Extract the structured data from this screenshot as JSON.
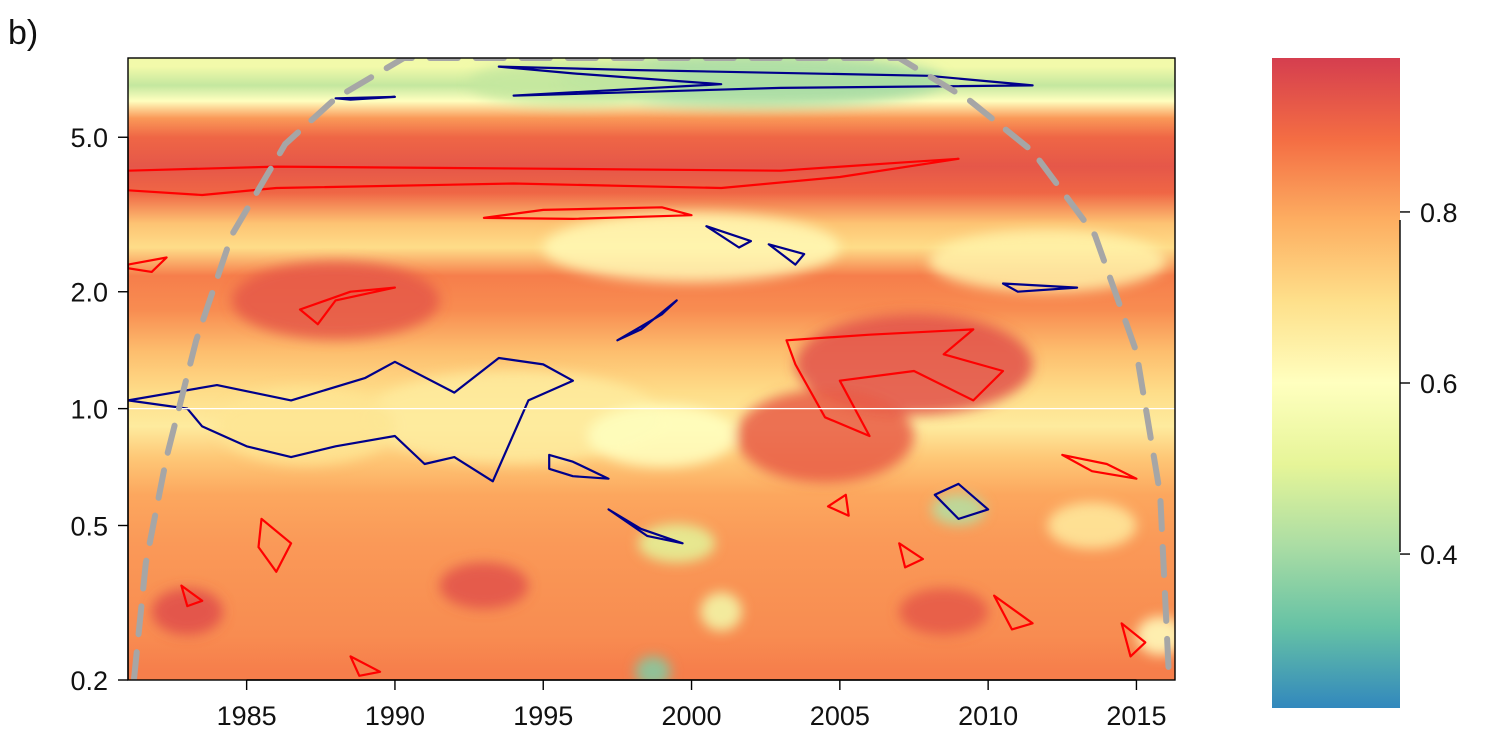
{
  "panel_label": "b)",
  "chart_data": {
    "type": "heatmap",
    "title": "",
    "xlabel": "",
    "ylabel": "",
    "panel_label": "b)",
    "x_range": [
      1981,
      2016.3
    ],
    "y_scale": "log",
    "y_range": [
      0.2,
      8.0
    ],
    "x_ticks": [
      1985,
      1990,
      1995,
      2000,
      2005,
      2010,
      2015
    ],
    "x_tick_labels": [
      "1985",
      "1990",
      "1995",
      "2000",
      "2005",
      "2010",
      "2015"
    ],
    "y_ticks": [
      0.2,
      0.5,
      1.0,
      2.0,
      5.0
    ],
    "y_tick_labels": [
      "0.2",
      "0.5",
      "1.0",
      "2.0",
      "5.0"
    ],
    "reference_line_y": 1.0,
    "colorbar": {
      "range": [
        0.22,
        0.98
      ],
      "ticks": [
        0.4,
        0.6,
        0.8
      ],
      "tick_labels": [
        "0.4",
        "0.6",
        "0.8"
      ],
      "palette": [
        "#3288bd",
        "#66c2a5",
        "#abdda4",
        "#e6f598",
        "#ffffbf",
        "#fee08b",
        "#fdae61",
        "#f46d43",
        "#d53e4f"
      ]
    },
    "bands": [
      {
        "y": 7.6,
        "value": 0.55
      },
      {
        "y": 6.8,
        "value": 0.45
      },
      {
        "y": 6.2,
        "value": 0.6
      },
      {
        "y": 5.6,
        "value": 0.82
      },
      {
        "y": 5.0,
        "value": 0.9
      },
      {
        "y": 4.2,
        "value": 0.93
      },
      {
        "y": 3.6,
        "value": 0.9
      },
      {
        "y": 3.0,
        "value": 0.75
      },
      {
        "y": 2.6,
        "value": 0.7
      },
      {
        "y": 2.2,
        "value": 0.86
      },
      {
        "y": 1.8,
        "value": 0.84
      },
      {
        "y": 1.4,
        "value": 0.76
      },
      {
        "y": 1.1,
        "value": 0.7
      },
      {
        "y": 0.9,
        "value": 0.66
      },
      {
        "y": 0.75,
        "value": 0.74
      },
      {
        "y": 0.6,
        "value": 0.8
      },
      {
        "y": 0.45,
        "value": 0.82
      },
      {
        "y": 0.35,
        "value": 0.83
      },
      {
        "y": 0.26,
        "value": 0.84
      },
      {
        "y": 0.21,
        "value": 0.86
      }
    ],
    "blobs": [
      {
        "x": 2002.0,
        "y": 7.0,
        "rx": 6.5,
        "ry": 0.07,
        "value": 0.4
      },
      {
        "x": 1996.0,
        "y": 6.9,
        "rx": 3.5,
        "ry": 0.06,
        "value": 0.45
      },
      {
        "x": 2000.0,
        "y": 2.6,
        "rx": 5.0,
        "ry": 0.09,
        "value": 0.62
      },
      {
        "x": 2012.0,
        "y": 2.4,
        "rx": 4.0,
        "ry": 0.08,
        "value": 0.64
      },
      {
        "x": 1988.0,
        "y": 1.9,
        "rx": 3.5,
        "ry": 0.1,
        "value": 0.93
      },
      {
        "x": 1994.0,
        "y": 0.95,
        "rx": 5.0,
        "ry": 0.12,
        "value": 0.66
      },
      {
        "x": 1987.0,
        "y": 0.9,
        "rx": 3.0,
        "ry": 0.1,
        "value": 0.68
      },
      {
        "x": 2007.5,
        "y": 1.3,
        "rx": 4.0,
        "ry": 0.13,
        "value": 0.94
      },
      {
        "x": 2004.5,
        "y": 0.85,
        "rx": 3.0,
        "ry": 0.12,
        "value": 0.92
      },
      {
        "x": 1999.0,
        "y": 0.85,
        "rx": 2.5,
        "ry": 0.08,
        "value": 0.6
      },
      {
        "x": 2009.0,
        "y": 0.55,
        "rx": 0.9,
        "ry": 0.04,
        "value": 0.42
      },
      {
        "x": 1999.5,
        "y": 0.45,
        "rx": 1.3,
        "ry": 0.05,
        "value": 0.5
      },
      {
        "x": 2001.0,
        "y": 0.3,
        "rx": 0.7,
        "ry": 0.05,
        "value": 0.55
      },
      {
        "x": 1998.7,
        "y": 0.21,
        "rx": 0.6,
        "ry": 0.04,
        "value": 0.35
      },
      {
        "x": 2015.8,
        "y": 0.26,
        "rx": 0.8,
        "ry": 0.05,
        "value": 0.6
      },
      {
        "x": 2013.5,
        "y": 0.5,
        "rx": 1.5,
        "ry": 0.06,
        "value": 0.66
      },
      {
        "x": 1983.0,
        "y": 0.3,
        "rx": 1.2,
        "ry": 0.06,
        "value": 0.95
      },
      {
        "x": 1993.0,
        "y": 0.35,
        "rx": 1.5,
        "ry": 0.06,
        "value": 0.94
      },
      {
        "x": 2008.5,
        "y": 0.3,
        "rx": 1.5,
        "ry": 0.06,
        "value": 0.93
      }
    ],
    "cone_of_influence": [
      {
        "x": 1981.2,
        "y": 0.2
      },
      {
        "x": 1981.6,
        "y": 0.4
      },
      {
        "x": 1982.3,
        "y": 0.75
      },
      {
        "x": 1983.3,
        "y": 1.5
      },
      {
        "x": 1984.5,
        "y": 2.8
      },
      {
        "x": 1986.3,
        "y": 4.8
      },
      {
        "x": 1988.0,
        "y": 6.3
      },
      {
        "x": 1990.3,
        "y": 8.0
      },
      {
        "x": 2007.0,
        "y": 8.0
      },
      {
        "x": 2009.4,
        "y": 6.2
      },
      {
        "x": 2011.5,
        "y": 4.6
      },
      {
        "x": 2013.6,
        "y": 2.8
      },
      {
        "x": 2015.0,
        "y": 1.4
      },
      {
        "x": 2015.8,
        "y": 0.6
      },
      {
        "x": 2016.1,
        "y": 0.2
      }
    ],
    "contours_high": [
      [
        {
          "x": 1981,
          "y": 4.1
        },
        {
          "x": 1986,
          "y": 4.2
        },
        {
          "x": 1995,
          "y": 4.15
        },
        {
          "x": 2003,
          "y": 4.1
        },
        {
          "x": 2007,
          "y": 4.3
        },
        {
          "x": 2009,
          "y": 4.4
        },
        {
          "x": 2005,
          "y": 3.95
        },
        {
          "x": 2001,
          "y": 3.7
        },
        {
          "x": 1994,
          "y": 3.8
        },
        {
          "x": 1986,
          "y": 3.7
        },
        {
          "x": 1983.5,
          "y": 3.55
        },
        {
          "x": 1981,
          "y": 3.65
        }
      ],
      [
        {
          "x": 1993,
          "y": 3.1
        },
        {
          "x": 1995,
          "y": 3.25
        },
        {
          "x": 1999,
          "y": 3.3
        },
        {
          "x": 2000,
          "y": 3.15
        },
        {
          "x": 1996,
          "y": 3.08
        },
        {
          "x": 1993,
          "y": 3.1
        }
      ],
      [
        {
          "x": 1986.8,
          "y": 1.8
        },
        {
          "x": 1988.5,
          "y": 2.0
        },
        {
          "x": 1990,
          "y": 2.05
        },
        {
          "x": 1988,
          "y": 1.9
        },
        {
          "x": 1987.4,
          "y": 1.65
        },
        {
          "x": 1986.8,
          "y": 1.8
        }
      ],
      [
        {
          "x": 2003.2,
          "y": 1.5
        },
        {
          "x": 2006,
          "y": 1.55
        },
        {
          "x": 2009.5,
          "y": 1.6
        },
        {
          "x": 2008.5,
          "y": 1.38
        },
        {
          "x": 2010.5,
          "y": 1.25
        },
        {
          "x": 2009.5,
          "y": 1.05
        },
        {
          "x": 2007.5,
          "y": 1.25
        },
        {
          "x": 2005.0,
          "y": 1.18
        },
        {
          "x": 2006.0,
          "y": 0.85
        },
        {
          "x": 2004.5,
          "y": 0.95
        },
        {
          "x": 2003.5,
          "y": 1.3
        },
        {
          "x": 2003.2,
          "y": 1.5
        }
      ],
      [
        {
          "x": 1981,
          "y": 2.35
        },
        {
          "x": 1982.3,
          "y": 2.45
        },
        {
          "x": 1981.8,
          "y": 2.25
        },
        {
          "x": 1981,
          "y": 2.3
        }
      ],
      [
        {
          "x": 1985.5,
          "y": 0.52
        },
        {
          "x": 1986.5,
          "y": 0.45
        },
        {
          "x": 1986.0,
          "y": 0.38
        },
        {
          "x": 1985.4,
          "y": 0.44
        },
        {
          "x": 1985.5,
          "y": 0.52
        }
      ],
      [
        {
          "x": 2004.6,
          "y": 0.56
        },
        {
          "x": 2005.2,
          "y": 0.6
        },
        {
          "x": 2005.3,
          "y": 0.53
        },
        {
          "x": 2004.6,
          "y": 0.56
        }
      ],
      [
        {
          "x": 2012.5,
          "y": 0.76
        },
        {
          "x": 2014.0,
          "y": 0.72
        },
        {
          "x": 2015.0,
          "y": 0.66
        },
        {
          "x": 2013.5,
          "y": 0.69
        },
        {
          "x": 2012.5,
          "y": 0.76
        }
      ],
      [
        {
          "x": 2010.2,
          "y": 0.33
        },
        {
          "x": 2011.5,
          "y": 0.28
        },
        {
          "x": 2010.8,
          "y": 0.27
        },
        {
          "x": 2010.2,
          "y": 0.33
        }
      ],
      [
        {
          "x": 1988.5,
          "y": 0.23
        },
        {
          "x": 1989.5,
          "y": 0.21
        },
        {
          "x": 1988.8,
          "y": 0.205
        },
        {
          "x": 1988.5,
          "y": 0.23
        }
      ],
      [
        {
          "x": 1982.8,
          "y": 0.35
        },
        {
          "x": 1983.5,
          "y": 0.32
        },
        {
          "x": 1983.0,
          "y": 0.31
        },
        {
          "x": 1982.8,
          "y": 0.35
        }
      ],
      [
        {
          "x": 2007.0,
          "y": 0.45
        },
        {
          "x": 2007.8,
          "y": 0.41
        },
        {
          "x": 2007.2,
          "y": 0.39
        },
        {
          "x": 2007.0,
          "y": 0.45
        }
      ],
      [
        {
          "x": 2014.5,
          "y": 0.28
        },
        {
          "x": 2015.3,
          "y": 0.25
        },
        {
          "x": 2014.8,
          "y": 0.23
        },
        {
          "x": 2014.5,
          "y": 0.28
        }
      ]
    ],
    "contours_low": [
      [
        {
          "x": 1993.5,
          "y": 7.6
        },
        {
          "x": 1998,
          "y": 7.45
        },
        {
          "x": 2008,
          "y": 7.2
        },
        {
          "x": 2011.5,
          "y": 6.8
        },
        {
          "x": 2003,
          "y": 6.7
        },
        {
          "x": 1994,
          "y": 6.4
        },
        {
          "x": 2001,
          "y": 6.85
        },
        {
          "x": 1996,
          "y": 7.3
        },
        {
          "x": 1993.5,
          "y": 7.6
        }
      ],
      [
        {
          "x": 1981,
          "y": 1.05
        },
        {
          "x": 1984,
          "y": 1.15
        },
        {
          "x": 1986.5,
          "y": 1.05
        },
        {
          "x": 1989,
          "y": 1.2
        },
        {
          "x": 1990,
          "y": 1.32
        },
        {
          "x": 1992,
          "y": 1.1
        },
        {
          "x": 1993.5,
          "y": 1.35
        },
        {
          "x": 1995,
          "y": 1.3
        },
        {
          "x": 1996,
          "y": 1.18
        },
        {
          "x": 1994.5,
          "y": 1.05
        },
        {
          "x": 1993.3,
          "y": 0.65
        },
        {
          "x": 1992,
          "y": 0.75
        },
        {
          "x": 1991,
          "y": 0.72
        },
        {
          "x": 1990,
          "y": 0.85
        },
        {
          "x": 1988,
          "y": 0.8
        },
        {
          "x": 1986.5,
          "y": 0.75
        },
        {
          "x": 1985,
          "y": 0.8
        },
        {
          "x": 1983.5,
          "y": 0.9
        },
        {
          "x": 1983,
          "y": 1.0
        },
        {
          "x": 1981,
          "y": 1.05
        }
      ],
      [
        {
          "x": 1995.2,
          "y": 0.76
        },
        {
          "x": 1996.0,
          "y": 0.73
        },
        {
          "x": 1997.2,
          "y": 0.66
        },
        {
          "x": 1996,
          "y": 0.67
        },
        {
          "x": 1995.2,
          "y": 0.7
        },
        {
          "x": 1995.2,
          "y": 0.76
        }
      ],
      [
        {
          "x": 2000.5,
          "y": 2.95
        },
        {
          "x": 2002.0,
          "y": 2.7
        },
        {
          "x": 2001.6,
          "y": 2.6
        },
        {
          "x": 2000.5,
          "y": 2.95
        }
      ],
      [
        {
          "x": 2002.6,
          "y": 2.65
        },
        {
          "x": 2003.8,
          "y": 2.5
        },
        {
          "x": 2003.5,
          "y": 2.35
        },
        {
          "x": 2002.6,
          "y": 2.65
        }
      ],
      [
        {
          "x": 1997.5,
          "y": 1.5
        },
        {
          "x": 1999.0,
          "y": 1.75
        },
        {
          "x": 1999.5,
          "y": 1.9
        },
        {
          "x": 1998.3,
          "y": 1.6
        },
        {
          "x": 1997.5,
          "y": 1.5
        }
      ],
      [
        {
          "x": 2008.2,
          "y": 0.6
        },
        {
          "x": 2009.0,
          "y": 0.64
        },
        {
          "x": 2010.0,
          "y": 0.55
        },
        {
          "x": 2009.0,
          "y": 0.52
        },
        {
          "x": 2008.2,
          "y": 0.6
        }
      ],
      [
        {
          "x": 1997.2,
          "y": 0.55
        },
        {
          "x": 1998.5,
          "y": 0.47
        },
        {
          "x": 1999.7,
          "y": 0.45
        },
        {
          "x": 1998.3,
          "y": 0.49
        },
        {
          "x": 1997.2,
          "y": 0.55
        }
      ],
      [
        {
          "x": 2010.5,
          "y": 2.1
        },
        {
          "x": 2013.0,
          "y": 2.05
        },
        {
          "x": 2011.0,
          "y": 2.0
        },
        {
          "x": 2010.5,
          "y": 2.1
        }
      ],
      [
        {
          "x": 1988.0,
          "y": 6.3
        },
        {
          "x": 1990.0,
          "y": 6.35
        },
        {
          "x": 1988.5,
          "y": 6.25
        },
        {
          "x": 1988.0,
          "y": 6.3
        }
      ]
    ]
  }
}
